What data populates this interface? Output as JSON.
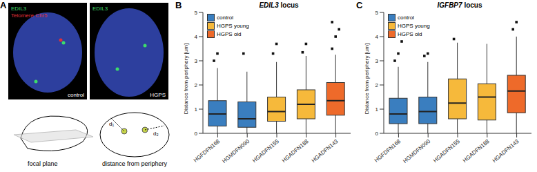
{
  "panel_labels": [
    "A",
    "B",
    "C"
  ],
  "panel_a": {
    "images": [
      {
        "labels": [
          {
            "text": "EDIL3",
            "color": "#3ddc6a"
          },
          {
            "text": "Telomere Chr5",
            "color": "#e0303a"
          }
        ],
        "condition": "control"
      },
      {
        "labels": [
          {
            "text": "EDIL3",
            "color": "#3ddc6a"
          }
        ],
        "condition": "HGPS"
      }
    ],
    "schematic": {
      "focal_plane": "focal plane",
      "distance": "distance from periphery",
      "d1": "d₁",
      "d2": "d₂"
    }
  },
  "chart_data": [
    {
      "type": "box",
      "title": "EDIL3 locus",
      "y_label": "Distance from periphery [um]",
      "categories": [
        "HGFDFN168",
        "HGMDFN090",
        "HGADFN155",
        "HGADFN188",
        "HGADFN143"
      ],
      "groups": [
        "control",
        "control",
        "HGPS young",
        "HGPS young",
        "HGPS old"
      ],
      "series": [
        {
          "name": "control",
          "color": "#3a7ebf"
        },
        {
          "name": "HGPS young",
          "color": "#f6b93b"
        },
        {
          "name": "HGPS old",
          "color": "#ee6a2a"
        }
      ],
      "boxes": [
        {
          "whisker_low": 0,
          "q1": 0.3,
          "median": 0.8,
          "q3": 1.35,
          "whisker_high": 2.7,
          "outliers": [
            3.0,
            3.3
          ]
        },
        {
          "whisker_low": 0,
          "q1": 0.25,
          "median": 0.6,
          "q3": 1.3,
          "whisker_high": 2.55,
          "outliers": [
            3.3
          ]
        },
        {
          "whisker_low": 0,
          "q1": 0.5,
          "median": 0.9,
          "q3": 1.5,
          "whisker_high": 2.95,
          "outliers": [
            3.3,
            3.7
          ]
        },
        {
          "whisker_low": 0,
          "q1": 0.6,
          "median": 1.2,
          "q3": 1.8,
          "whisker_high": 3.2,
          "outliers": [
            3.35,
            3.7
          ]
        },
        {
          "whisker_low": 0,
          "q1": 0.75,
          "median": 1.35,
          "q3": 2.1,
          "whisker_high": 3.25,
          "outliers": [
            3.5,
            4.0,
            4.3,
            4.6
          ]
        }
      ],
      "ylim": [
        0,
        5
      ],
      "yticks": [
        0,
        1,
        2,
        3,
        4,
        5
      ],
      "legend": "upper left",
      "grid": false
    },
    {
      "type": "box",
      "title": "IGFBP7 locus",
      "y_label": "Distance from periphery [um]",
      "categories": [
        "HGFDFN168",
        "HGMDFN090",
        "HGADFN155",
        "HGADFN188",
        "HGADFN143"
      ],
      "groups": [
        "control",
        "control",
        "HGPS young",
        "HGPS young",
        "HGPS old"
      ],
      "series": [
        {
          "name": "control",
          "color": "#3a7ebf"
        },
        {
          "name": "HGPS young",
          "color": "#f6b93b"
        },
        {
          "name": "HGPS old",
          "color": "#ee6a2a"
        }
      ],
      "boxes": [
        {
          "whisker_low": 0,
          "q1": 0.4,
          "median": 0.8,
          "q3": 1.45,
          "whisker_high": 2.75,
          "outliers": [
            3.0,
            3.3,
            3.8
          ]
        },
        {
          "whisker_low": 0,
          "q1": 0.4,
          "median": 0.9,
          "q3": 1.5,
          "whisker_high": 2.95,
          "outliers": [
            3.2,
            3.3
          ]
        },
        {
          "whisker_low": 0,
          "q1": 0.6,
          "median": 1.25,
          "q3": 2.25,
          "whisker_high": 3.75,
          "outliers": [
            3.9
          ]
        },
        {
          "whisker_low": 0,
          "q1": 0.55,
          "median": 1.5,
          "q3": 2.05,
          "whisker_high": 3.7,
          "outliers": []
        },
        {
          "whisker_low": 0,
          "q1": 0.85,
          "median": 1.75,
          "q3": 2.4,
          "whisker_high": 4.0,
          "outliers": [
            4.3,
            4.6
          ]
        }
      ],
      "ylim": [
        0,
        5
      ],
      "yticks": [
        0,
        1,
        2,
        3,
        4,
        5
      ],
      "legend": "upper left",
      "grid": false
    }
  ]
}
